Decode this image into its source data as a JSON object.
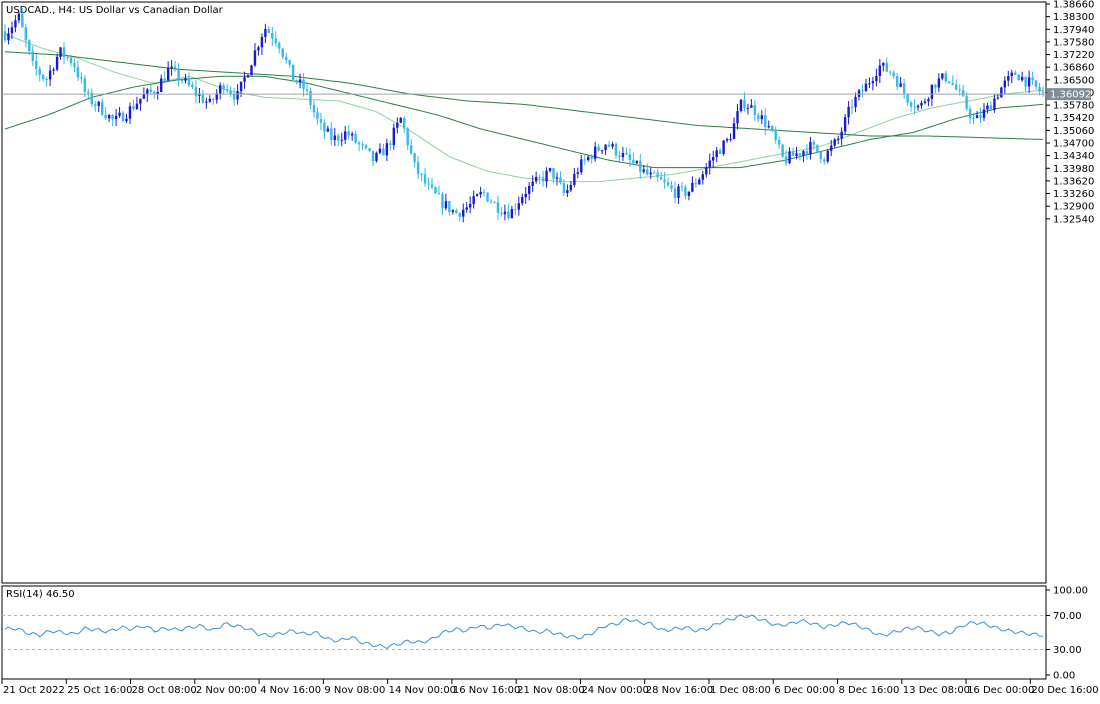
{
  "chart_data": [
    {
      "type": "candlestick",
      "title": "USDCAD., H4:  US Dollar vs Canadian Dollar",
      "current_price": 1.36092,
      "current_price_label": "1.36092",
      "ylim": [
        1.2225,
        1.3866
      ],
      "y_ticks": [
        "1.38660",
        "1.38300",
        "1.37940",
        "1.37580",
        "1.37220",
        "1.36860",
        "1.36500",
        "1.36140",
        "1.35780",
        "1.35420",
        "1.35060",
        "1.34700",
        "1.34340",
        "1.33980",
        "1.33620",
        "1.33260",
        "1.32900",
        "1.32540"
      ],
      "x_ticks": [
        "21 Oct 2022",
        "25 Oct 16:00",
        "28 Oct 08:00",
        "2 Nov 00:00",
        "4 Nov 16:00",
        "9 Nov 08:00",
        "14 Nov 00:00",
        "16 Nov 16:00",
        "21 Nov 08:00",
        "24 Nov 00:00",
        "28 Nov 16:00",
        "1 Dec 08:00",
        "6 Dec 00:00",
        "8 Dec 16:00",
        "13 Dec 08:00",
        "16 Dec 00:00",
        "20 Dec 16:00"
      ],
      "up_color": "#1a1acd",
      "down_color": "#35b9e6",
      "ma_fast_color": "#8fd19e",
      "ma_slow_color": "#2e7d45",
      "close_path": [
        1.378,
        1.383,
        1.369,
        1.365,
        1.373,
        1.37,
        1.36,
        1.357,
        1.353,
        1.356,
        1.36,
        1.362,
        1.368,
        1.365,
        1.361,
        1.358,
        1.364,
        1.36,
        1.37,
        1.38,
        1.376,
        1.366,
        1.362,
        1.352,
        1.348,
        1.35,
        1.346,
        1.342,
        1.346,
        1.354,
        1.34,
        1.334,
        1.33,
        1.327,
        1.329,
        1.333,
        1.329,
        1.327,
        1.333,
        1.336,
        1.339,
        1.332,
        1.34,
        1.344,
        1.347,
        1.344,
        1.341,
        1.338,
        1.336,
        1.333,
        1.333,
        1.338,
        1.344,
        1.348,
        1.359,
        1.356,
        1.351,
        1.342,
        1.344,
        1.346,
        1.343,
        1.348,
        1.358,
        1.363,
        1.369,
        1.367,
        1.36,
        1.357,
        1.364,
        1.366,
        1.36,
        1.353,
        1.357,
        1.363,
        1.367,
        1.364,
        1.361
      ],
      "ma_fast_path": [
        1.378,
        1.374,
        1.371,
        1.367,
        1.364,
        1.366,
        1.362,
        1.36,
        1.3595,
        1.359,
        1.356,
        1.35,
        1.343,
        1.339,
        1.337,
        1.336,
        1.336,
        1.337,
        1.338,
        1.34,
        1.342,
        1.344,
        1.346,
        1.35,
        1.354,
        1.357,
        1.359,
        1.361,
        1.362
      ],
      "ma_slow_path": [
        1.351,
        1.355,
        1.36,
        1.363,
        1.365,
        1.366,
        1.366,
        1.364,
        1.361,
        1.358,
        1.355,
        1.351,
        1.348,
        1.345,
        1.342,
        1.34,
        1.34,
        1.34,
        1.342,
        1.345,
        1.348,
        1.35,
        1.354,
        1.357,
        1.358
      ],
      "ma_long_path": [
        1.373,
        1.372,
        1.37,
        1.368,
        1.367,
        1.366,
        1.364,
        1.361,
        1.359,
        1.358,
        1.356,
        1.354,
        1.352,
        1.351,
        1.35,
        1.349,
        1.349,
        1.3485,
        1.348
      ]
    },
    {
      "type": "line",
      "title": "RSI(14) 46.50",
      "ylim": [
        0,
        100
      ],
      "y_ticks": [
        "100.00",
        "70.00",
        "30.00",
        "0.00"
      ],
      "levels": [
        70,
        30
      ],
      "line_color": "#3a8fd9",
      "values": [
        54,
        55,
        49,
        47,
        52,
        50,
        48,
        55,
        53,
        51,
        56,
        54,
        58,
        52,
        55,
        53,
        56,
        58,
        52,
        60,
        58,
        55,
        48,
        46,
        49,
        52,
        48,
        50,
        42,
        40,
        45,
        38,
        35,
        33,
        36,
        40,
        38,
        42,
        50,
        54,
        52,
        58,
        55,
        60,
        57,
        55,
        50,
        52,
        48,
        45,
        44,
        50,
        58,
        60,
        66,
        62,
        60,
        52,
        54,
        56,
        52,
        55,
        62,
        66,
        70,
        68,
        63,
        58,
        60,
        64,
        61,
        56,
        59,
        62,
        58,
        52,
        46,
        50,
        54,
        56,
        52,
        48,
        50,
        58,
        62,
        60,
        55,
        52,
        50,
        48,
        47
      ]
    }
  ]
}
